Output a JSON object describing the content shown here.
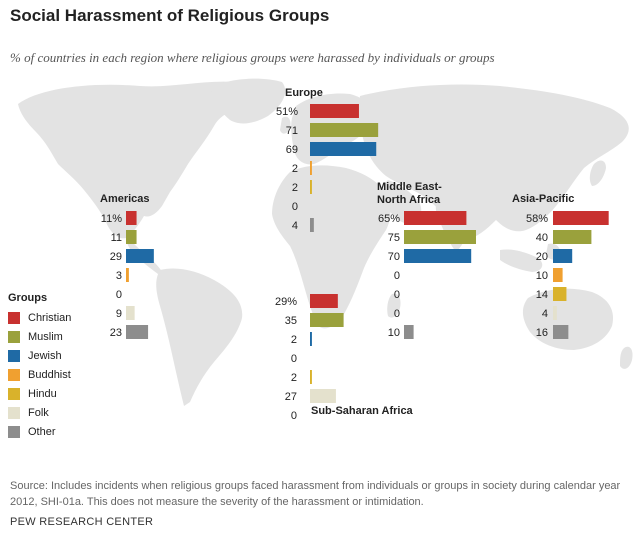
{
  "title": "Social Harassment of Religious Groups",
  "subtitle": "% of countries in each region where religious groups were harassed by individuals or groups",
  "source": "Source: Includes incidents when religious groups faced harassment from individuals or groups in society during calendar year 2012, SHI-01a. This does not measure the severity of the harassment or intimidation.",
  "brand": "PEW RESEARCH CENTER",
  "legend": {
    "title": "Groups",
    "items": [
      {
        "label": "Christian",
        "color": "#c8312f"
      },
      {
        "label": "Muslim",
        "color": "#9aa13c"
      },
      {
        "label": "Jewish",
        "color": "#1f6aa5"
      },
      {
        "label": "Buddhist",
        "color": "#f0a030"
      },
      {
        "label": "Hindu",
        "color": "#d9b22b"
      },
      {
        "label": "Folk",
        "color": "#e4e1cd"
      },
      {
        "label": "Other",
        "color": "#8d8d8d"
      }
    ]
  },
  "chart_data": {
    "type": "bar",
    "orientation": "horizontal",
    "categories": [
      "Christian",
      "Muslim",
      "Jewish",
      "Buddhist",
      "Hindu",
      "Folk",
      "Other"
    ],
    "unit": "%",
    "series": [
      {
        "name": "Americas",
        "values": [
          11,
          11,
          29,
          3,
          0,
          9,
          23
        ],
        "labels": [
          "11%",
          "11",
          "29",
          "3",
          "0",
          "9",
          "23"
        ]
      },
      {
        "name": "Europe",
        "values": [
          51,
          71,
          69,
          2,
          2,
          0,
          4
        ],
        "labels": [
          "51%",
          "71",
          "69",
          "2",
          "2",
          "0",
          "4"
        ]
      },
      {
        "name": "Middle East-North Africa",
        "name_lines": [
          "Middle East-",
          "North Africa"
        ],
        "values": [
          65,
          75,
          70,
          0,
          0,
          0,
          10
        ],
        "labels": [
          "65%",
          "75",
          "70",
          "0",
          "0",
          "0",
          "10"
        ]
      },
      {
        "name": "Asia-Pacific",
        "values": [
          58,
          40,
          20,
          10,
          14,
          4,
          16
        ],
        "labels": [
          "58%",
          "40",
          "20",
          "10",
          "14",
          "4",
          "16"
        ]
      },
      {
        "name": "Sub-Saharan Africa",
        "values": [
          29,
          35,
          2,
          0,
          2,
          27,
          0
        ],
        "labels": [
          "29%",
          "35",
          "2",
          "0",
          "2",
          "27",
          "0"
        ]
      }
    ],
    "xlim": [
      0,
      100
    ],
    "grid": false,
    "legend": "left"
  }
}
